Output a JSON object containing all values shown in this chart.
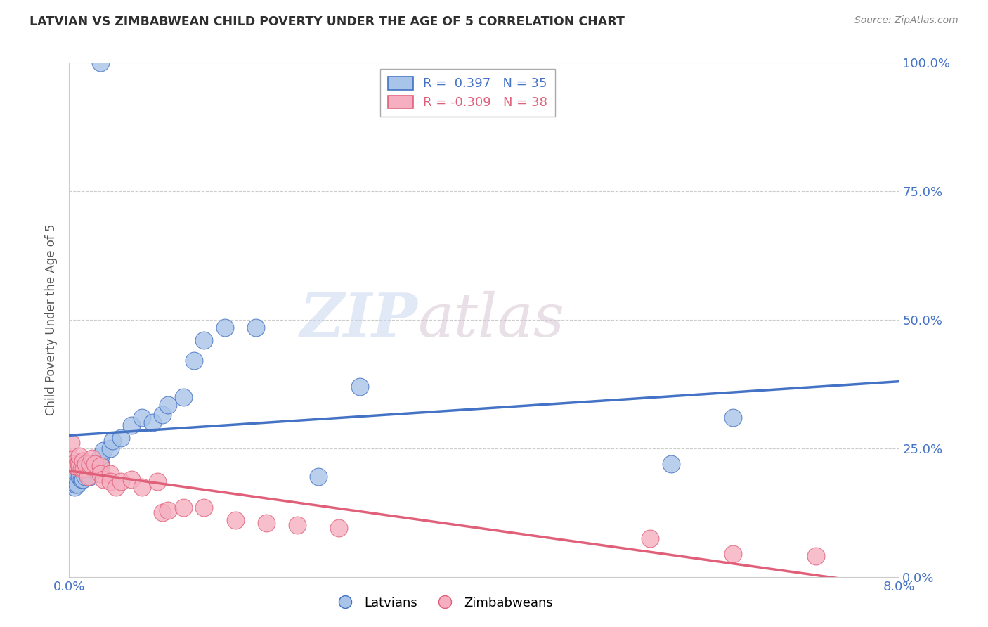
{
  "title": "LATVIAN VS ZIMBABWEAN CHILD POVERTY UNDER THE AGE OF 5 CORRELATION CHART",
  "source": "Source: ZipAtlas.com",
  "ylabel": "Child Poverty Under the Age of 5",
  "xlim": [
    0.0,
    0.08
  ],
  "ylim": [
    0.0,
    1.0
  ],
  "xticks": [
    0.0,
    0.08
  ],
  "xtick_labels": [
    "0.0%",
    "8.0%"
  ],
  "ytick_labels_right": [
    "0.0%",
    "25.0%",
    "50.0%",
    "75.0%",
    "100.0%"
  ],
  "yticks_right": [
    0.0,
    0.25,
    0.5,
    0.75,
    1.0
  ],
  "watermark_zip": "ZIP",
  "watermark_atlas": "atlas",
  "latvian_color": "#a8c4e8",
  "zimbabwean_color": "#f5afc0",
  "latvian_line_color": "#4472c4",
  "zimbabwean_line_color": "#e0607a",
  "latvian_R": 0.397,
  "latvian_N": 35,
  "zimbabwean_R": -0.309,
  "zimbabwean_N": 38,
  "latvian_x": [
    0.0003,
    0.0003,
    0.0005,
    0.0006,
    0.0008,
    0.001,
    0.0012,
    0.0013,
    0.0015,
    0.0017,
    0.002,
    0.002,
    0.0022,
    0.0025,
    0.003,
    0.003,
    0.0033,
    0.004,
    0.0042,
    0.005,
    0.006,
    0.007,
    0.008,
    0.009,
    0.0095,
    0.011,
    0.012,
    0.013,
    0.015,
    0.018,
    0.024,
    0.028,
    0.058,
    0.064,
    0.003
  ],
  "latvian_y": [
    0.185,
    0.19,
    0.175,
    0.18,
    0.18,
    0.195,
    0.19,
    0.19,
    0.195,
    0.2,
    0.195,
    0.22,
    0.21,
    0.215,
    0.22,
    0.235,
    0.245,
    0.25,
    0.265,
    0.27,
    0.295,
    0.31,
    0.3,
    0.315,
    0.335,
    0.35,
    0.42,
    0.46,
    0.485,
    0.485,
    0.195,
    0.37,
    0.22,
    0.31,
    1.0
  ],
  "zimbabwean_x": [
    0.0001,
    0.0002,
    0.0004,
    0.0006,
    0.0007,
    0.0009,
    0.001,
    0.001,
    0.0012,
    0.0013,
    0.0014,
    0.0016,
    0.0018,
    0.002,
    0.002,
    0.0022,
    0.0025,
    0.003,
    0.003,
    0.0033,
    0.004,
    0.004,
    0.0045,
    0.005,
    0.006,
    0.007,
    0.0085,
    0.009,
    0.0095,
    0.011,
    0.013,
    0.016,
    0.019,
    0.022,
    0.026,
    0.056,
    0.064,
    0.072
  ],
  "zimbabwean_y": [
    0.23,
    0.26,
    0.22,
    0.215,
    0.215,
    0.22,
    0.215,
    0.235,
    0.21,
    0.225,
    0.21,
    0.22,
    0.195,
    0.215,
    0.22,
    0.23,
    0.22,
    0.215,
    0.2,
    0.19,
    0.2,
    0.185,
    0.175,
    0.185,
    0.19,
    0.175,
    0.185,
    0.125,
    0.13,
    0.135,
    0.135,
    0.11,
    0.105,
    0.1,
    0.095,
    0.075,
    0.045,
    0.04
  ],
  "background_color": "#ffffff",
  "title_color": "#2f2f2f",
  "tick_color": "#4472c4",
  "grid_color": "#cccccc",
  "legend_edge_color": "#aaaaaa"
}
